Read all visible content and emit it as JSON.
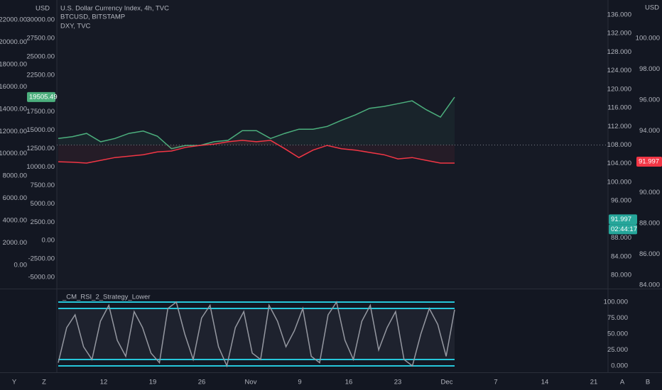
{
  "legend": {
    "title": "U.S. Dollar Currency Index, 4h, TVC",
    "lines": [
      "BTCUSD, BITSTAMP",
      "DXY, TVC"
    ]
  },
  "currency_left": "USD",
  "currency_right": "USD",
  "axes": {
    "left_outer": {
      "lim": [
        -2100,
        23780
      ],
      "ticks": [
        {
          "value": 22000,
          "label": "22000.00"
        },
        {
          "value": 20000,
          "label": "20000.00"
        },
        {
          "value": 18000,
          "label": "18000.00"
        },
        {
          "value": 16000,
          "label": "16000.00"
        },
        {
          "value": 14000,
          "label": "14000.00"
        },
        {
          "value": 12000,
          "label": "12000.00"
        },
        {
          "value": 10000,
          "label": "10000.00"
        },
        {
          "value": 8000,
          "label": "8000.00"
        },
        {
          "value": 6000,
          "label": "6000.00"
        },
        {
          "value": 4000,
          "label": "4000.00"
        },
        {
          "value": 2000,
          "label": "2000.00"
        },
        {
          "value": 0,
          "label": "0.00"
        }
      ]
    },
    "left_inner": {
      "lim": [
        -6540,
        32700
      ],
      "ticks": [
        {
          "value": 30000,
          "label": "30000.00"
        },
        {
          "value": 27500,
          "label": "27500.00"
        },
        {
          "value": 25000,
          "label": "25000.00"
        },
        {
          "value": 22500,
          "label": "22500.00"
        },
        {
          "value": 17500,
          "label": "17500.00"
        },
        {
          "value": 15000,
          "label": "15000.00"
        },
        {
          "value": 12500,
          "label": "12500.00"
        },
        {
          "value": 10000,
          "label": "10000.00"
        },
        {
          "value": 7500,
          "label": "7500.00"
        },
        {
          "value": 5000,
          "label": "5000.00"
        },
        {
          "value": 2500,
          "label": "2500.00"
        },
        {
          "value": 0,
          "label": "0.00"
        },
        {
          "value": -2500,
          "label": "-2500.00"
        },
        {
          "value": -5000,
          "label": "-5000.00"
        }
      ]
    },
    "right_inner": {
      "lim": [
        77.1,
        139.2
      ],
      "ticks": [
        {
          "value": 136,
          "label": "136.000"
        },
        {
          "value": 132,
          "label": "132.000"
        },
        {
          "value": 128,
          "label": "128.000"
        },
        {
          "value": 124,
          "label": "124.000"
        },
        {
          "value": 120,
          "label": "120.000"
        },
        {
          "value": 116,
          "label": "116.000"
        },
        {
          "value": 112,
          "label": "112.000"
        },
        {
          "value": 108,
          "label": "108.000"
        },
        {
          "value": 104,
          "label": "104.000"
        },
        {
          "value": 100,
          "label": "100.000"
        },
        {
          "value": 96,
          "label": "96.000"
        },
        {
          "value": 88,
          "label": "88.000"
        },
        {
          "value": 84,
          "label": "84.000"
        },
        {
          "value": 80,
          "label": "80.000"
        }
      ]
    },
    "right_outer": {
      "lim": [
        83.77,
        102.48
      ],
      "ticks": [
        {
          "value": 100,
          "label": "100.000"
        },
        {
          "value": 98,
          "label": "98.000"
        },
        {
          "value": 96,
          "label": "96.000"
        },
        {
          "value": 94,
          "label": "94.000"
        },
        {
          "value": 90,
          "label": "90.000"
        },
        {
          "value": 88,
          "label": "88.000"
        },
        {
          "value": 86,
          "label": "86.000"
        },
        {
          "value": 84,
          "label": "84.000"
        }
      ]
    }
  },
  "series": [
    {
      "color": "#4caf7d",
      "axis": "right_inner",
      "values": [
        109.4,
        109.8,
        110.5,
        108.7,
        109.4,
        110.5,
        111.0,
        109.9,
        107.2,
        107.9,
        107.9,
        108.7,
        109.0,
        111.1,
        111.1,
        109.4,
        110.5,
        111.4,
        111.4,
        112.0,
        113.3,
        114.5,
        115.9,
        116.3,
        116.9,
        117.5,
        115.6,
        114.0,
        118.3
      ]
    },
    {
      "color": "#f23645",
      "axis": "right_inner",
      "values": [
        104.4,
        104.3,
        104.1,
        104.7,
        105.3,
        105.6,
        105.9,
        106.5,
        106.7,
        107.5,
        107.9,
        108.2,
        108.7,
        109.0,
        108.7,
        109.0,
        107.2,
        105.3,
        106.9,
        107.9,
        107.2,
        106.9,
        106.4,
        105.9,
        105.0,
        105.3,
        104.7,
        104.1,
        104.1
      ]
    }
  ],
  "reference_line": {
    "axis": "right_inner",
    "value": 108
  },
  "price_tags": [
    {
      "axis": "left_inner",
      "value": 19505.49,
      "label": "19505.49",
      "color": "#4caf7d"
    },
    {
      "axis": "right_outer",
      "value": 91.997,
      "label": "91.997",
      "color": "#f23645"
    },
    {
      "axis": "right_inner",
      "value": 91.997,
      "label": "91.997",
      "color": "#26a69a",
      "countdown": "02:44:17"
    }
  ],
  "indicator": {
    "name": "_CM_RSI_2_Strategy_Lower",
    "lim": [
      -10,
      120
    ],
    "ticks": [
      {
        "value": 100,
        "label": "100.000"
      },
      {
        "value": 75,
        "label": "75.000"
      },
      {
        "value": 50,
        "label": "50.000"
      },
      {
        "value": 25,
        "label": "25.000"
      },
      {
        "value": 0,
        "label": "0.000"
      }
    ],
    "levels": [
      100,
      90,
      10,
      0
    ],
    "level_color": "#26c6da",
    "line_color": "#9598a1",
    "values": [
      5,
      60,
      80,
      30,
      10,
      70,
      95,
      40,
      15,
      85,
      60,
      20,
      5,
      90,
      100,
      50,
      10,
      75,
      95,
      30,
      0,
      60,
      85,
      20,
      10,
      95,
      70,
      30,
      55,
      90,
      15,
      5,
      80,
      100,
      40,
      10,
      70,
      95,
      25,
      60,
      85,
      10,
      0,
      50,
      90,
      65,
      15,
      88
    ]
  },
  "time_axis": [
    "12",
    "19",
    "26",
    "Nov",
    "9",
    "16",
    "23",
    "Dec",
    "7",
    "14",
    "21"
  ],
  "buttons": {
    "left": [
      "Y",
      "Z"
    ],
    "right": [
      "A",
      "B"
    ]
  }
}
